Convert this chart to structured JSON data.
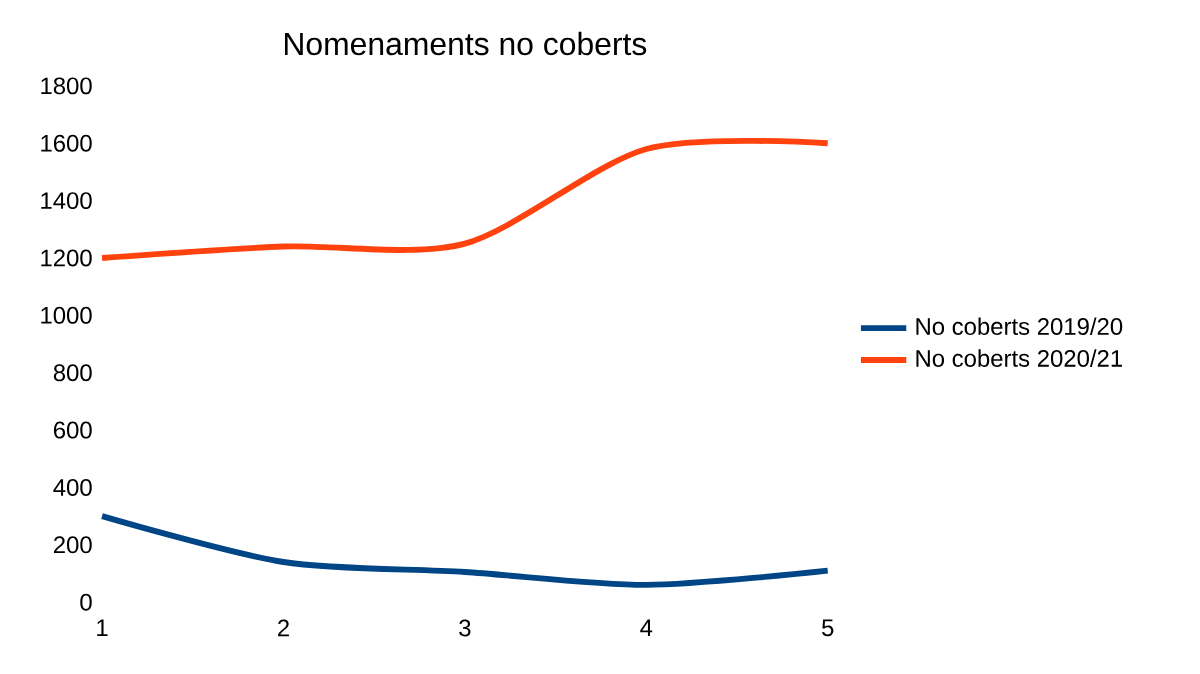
{
  "chart_data": {
    "type": "line",
    "title": "Nomenaments no coberts",
    "x": [
      1,
      2,
      3,
      4,
      5
    ],
    "xlim": [
      1,
      5
    ],
    "xticks": [
      1,
      2,
      3,
      4,
      5
    ],
    "ylim": [
      0,
      1800
    ],
    "yticks": [
      0,
      200,
      400,
      600,
      800,
      1000,
      1200,
      1400,
      1600,
      1800
    ],
    "series": [
      {
        "name": "No coberts 2019/20",
        "color": "#004586",
        "values": [
          300,
          140,
          105,
          60,
          110
        ]
      },
      {
        "name": "No coberts 2020/21",
        "color": "#ff420e",
        "values": [
          1200,
          1240,
          1250,
          1580,
          1600
        ]
      }
    ],
    "grid": false,
    "legend": "right",
    "marker": "none",
    "line_style": "solid"
  }
}
